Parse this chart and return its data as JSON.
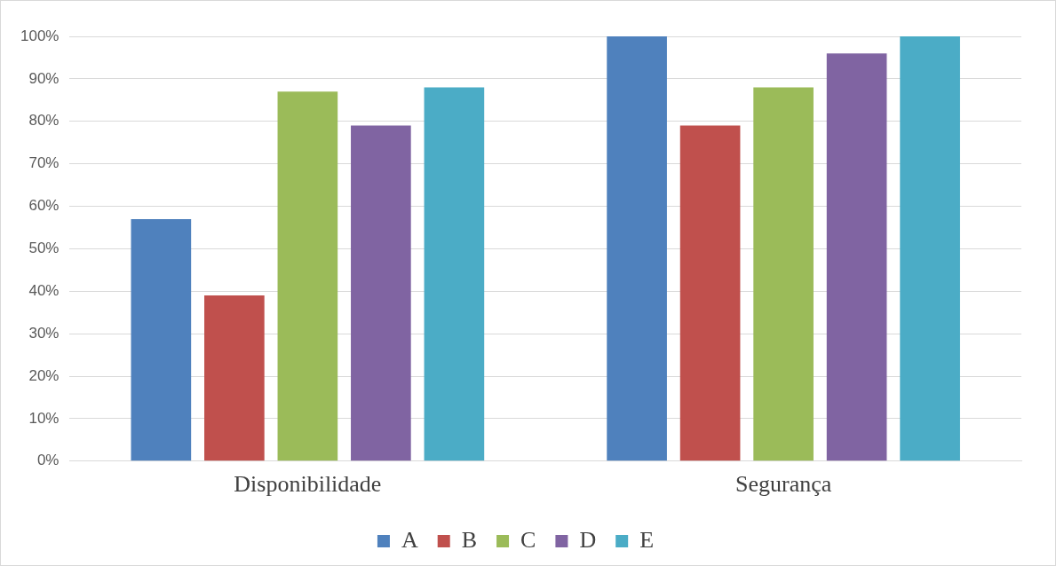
{
  "chart_data": {
    "type": "bar",
    "categories": [
      "Disponibilidade",
      "Segurança"
    ],
    "series": [
      {
        "name": "A",
        "color": "#4f81bd",
        "values": [
          57,
          100
        ]
      },
      {
        "name": "B",
        "color": "#c0504d",
        "values": [
          39,
          79
        ]
      },
      {
        "name": "C",
        "color": "#9bbb59",
        "values": [
          87,
          88
        ]
      },
      {
        "name": "D",
        "color": "#8064a2",
        "values": [
          79,
          96
        ]
      },
      {
        "name": "E",
        "color": "#4bacc6",
        "values": [
          88,
          100
        ]
      }
    ],
    "ylim": [
      0,
      100
    ],
    "yticks": [
      {
        "value": 0,
        "label": "0%"
      },
      {
        "value": 10,
        "label": "10%"
      },
      {
        "value": 20,
        "label": "20%"
      },
      {
        "value": 30,
        "label": "30%"
      },
      {
        "value": 40,
        "label": "40%"
      },
      {
        "value": 50,
        "label": "50%"
      },
      {
        "value": 60,
        "label": "60%"
      },
      {
        "value": 70,
        "label": "70%"
      },
      {
        "value": 80,
        "label": "80%"
      },
      {
        "value": 90,
        "label": "90%"
      },
      {
        "value": 100,
        "label": "100%"
      }
    ],
    "grid": "y",
    "legend": "bottom"
  }
}
